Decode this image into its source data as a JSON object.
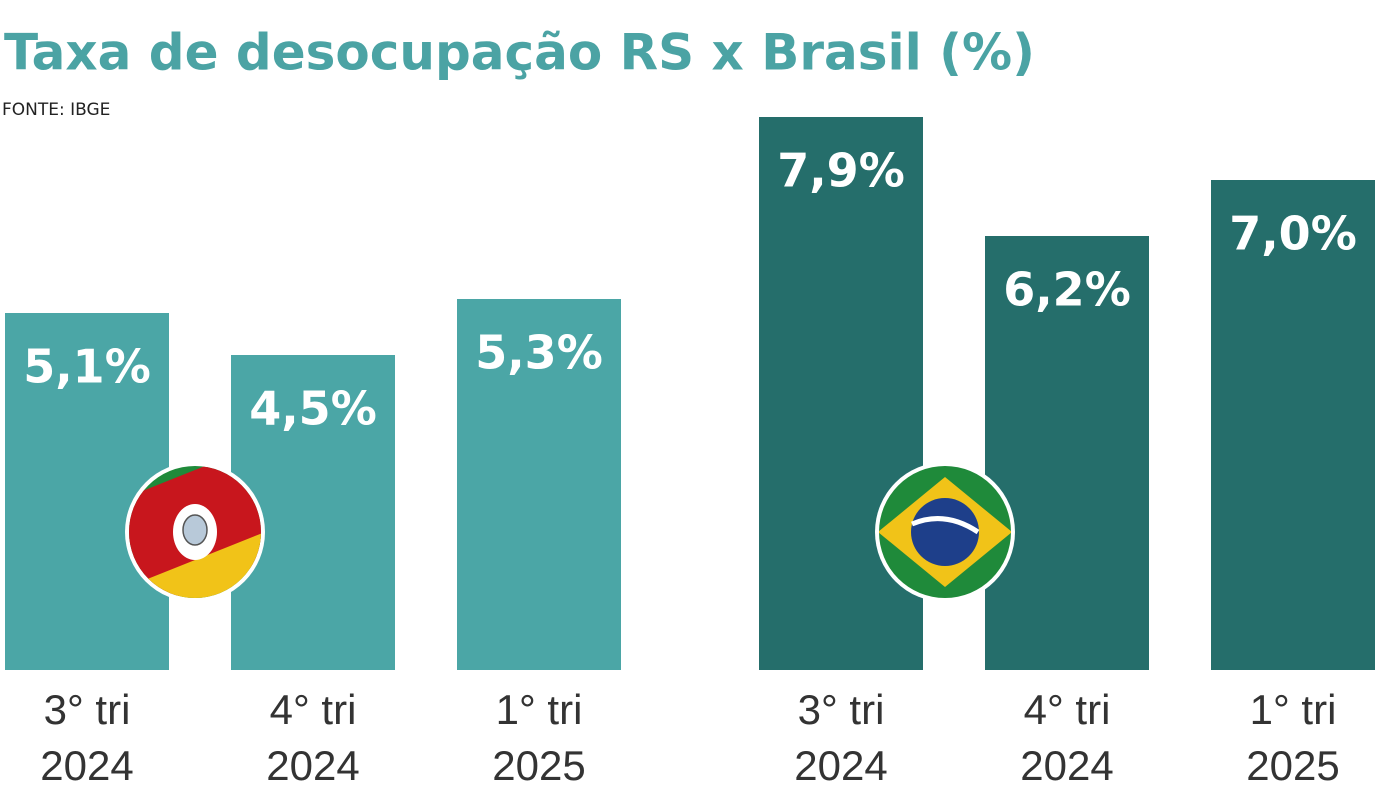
{
  "chart_data": {
    "type": "bar",
    "title": "Taxa de desocupação RS x Brasil (%)",
    "subtitle": "FONTE: IBGE",
    "categories": [
      [
        "3° tri",
        "2024"
      ],
      [
        "4° tri",
        "2024"
      ],
      [
        "1° tri",
        "2025"
      ]
    ],
    "series": [
      {
        "color": "#4ba6a6",
        "values": [
          5.1,
          4.5,
          5.3
        ],
        "value_labels": [
          "5,1%",
          "4,5%",
          "5,3%"
        ]
      },
      {
        "color": "#256e6b",
        "values": [
          7.9,
          6.2,
          7.0
        ],
        "value_labels": [
          "7,9%",
          "6,2%",
          "7,0%"
        ]
      }
    ],
    "ylim": [
      0,
      9.5
    ]
  }
}
